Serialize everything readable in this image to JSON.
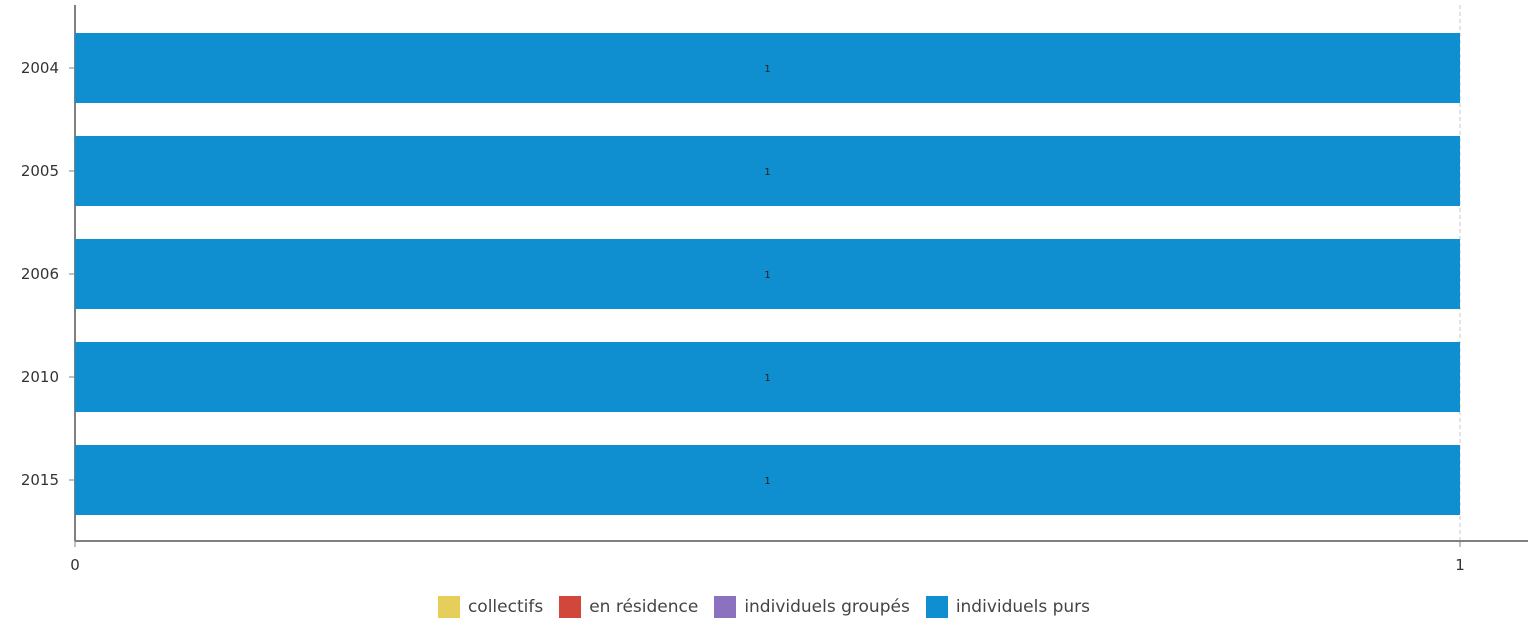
{
  "chart_data": {
    "type": "bar",
    "orientation": "horizontal",
    "stacked": true,
    "categories": [
      "2004",
      "2005",
      "2006",
      "2010",
      "2015"
    ],
    "series": [
      {
        "name": "collectifs",
        "color": "#E6CE5A",
        "values": [
          0,
          0,
          0,
          0,
          0
        ]
      },
      {
        "name": "en résidence",
        "color": "#D2473C",
        "values": [
          0,
          0,
          0,
          0,
          0
        ]
      },
      {
        "name": "individuels groupés",
        "color": "#8B72BE",
        "values": [
          0,
          0,
          0,
          0,
          0
        ]
      },
      {
        "name": "individuels purs",
        "color": "#0F8ED0",
        "values": [
          1,
          1,
          1,
          1,
          1
        ]
      }
    ],
    "data_labels": [
      "1",
      "1",
      "1",
      "1",
      "1"
    ],
    "xlim": [
      0,
      1
    ],
    "xticks": [
      "0",
      "1"
    ],
    "grid": "vertical-dashed",
    "legend": "bottom-center",
    "title": "",
    "xlabel": "",
    "ylabel": ""
  }
}
